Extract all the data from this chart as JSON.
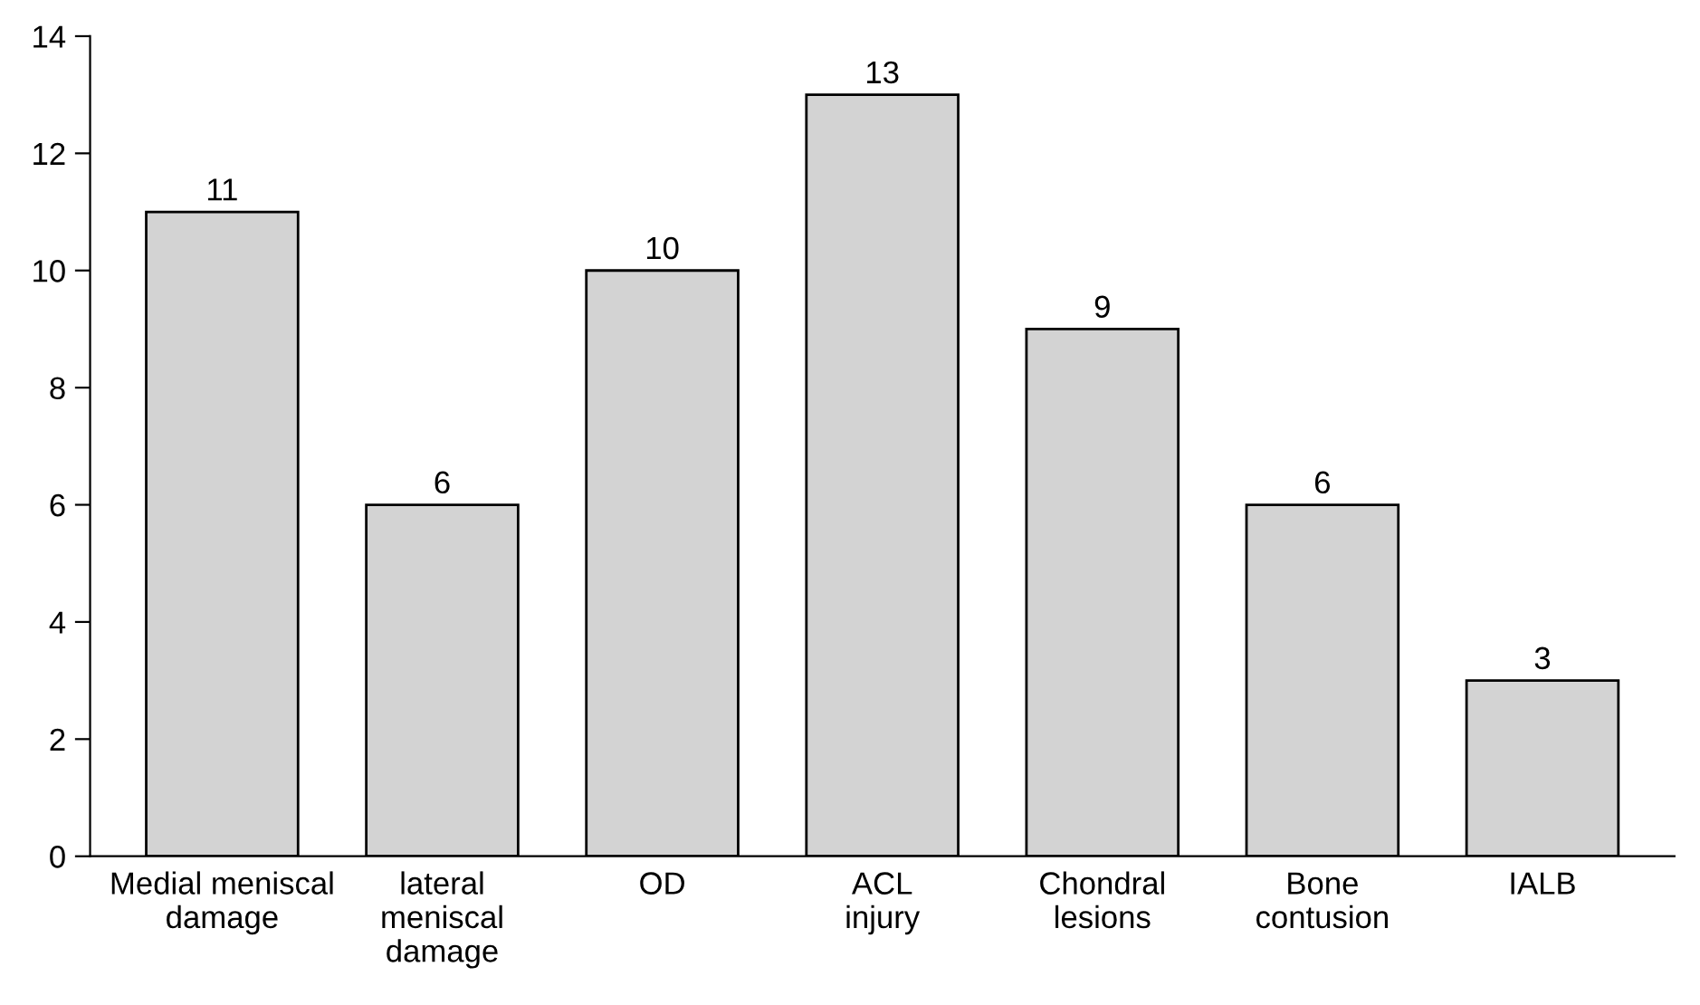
{
  "chart_data": {
    "type": "bar",
    "categories": [
      "Medial meniscal\ndamage",
      "lateral\nmeniscal\ndamage",
      "OD",
      "ACL\ninjury",
      "Chondral\nlesions",
      "Bone\ncontusion",
      "IALB"
    ],
    "values": [
      11,
      6,
      10,
      13,
      9,
      6,
      3
    ],
    "color": "#d3d3d3",
    "ylim": [
      0,
      14
    ],
    "yticks": [
      0,
      2,
      4,
      6,
      8,
      10,
      12,
      14
    ],
    "data_labels": true,
    "grid": false,
    "legend": false
  }
}
